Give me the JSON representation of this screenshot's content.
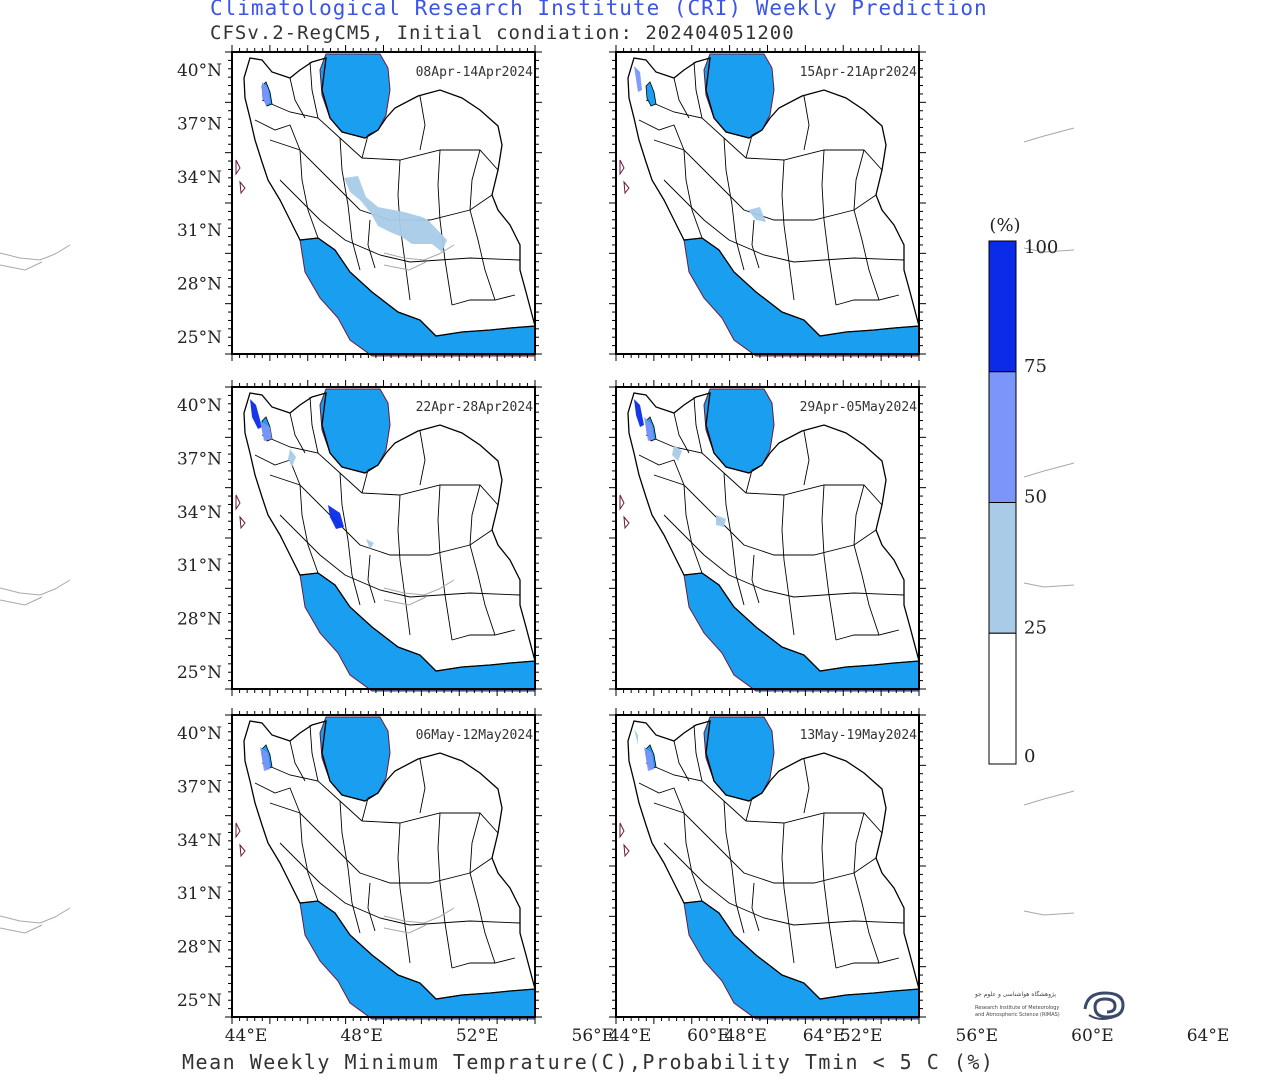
{
  "header": {
    "title": "Climatological Research Institute (CRI) Weekly Prediction",
    "subtitle": "CFSv.2-RegCM5, Initial condiation: 202404051200"
  },
  "footer": {
    "caption": "Mean Weekly Minimum Temprature(C),Probability Tmin < 5 C (%)"
  },
  "axes": {
    "lat_ticks": [
      "40°N",
      "37°N",
      "34°N",
      "31°N",
      "28°N",
      "25°N"
    ],
    "lon_ticks": [
      "44°E",
      "48°E",
      "52°E",
      "56°E",
      "60°E",
      "64°E"
    ],
    "lat_values": [
      40,
      37,
      34,
      31,
      28,
      25
    ],
    "lon_values": [
      44,
      48,
      52,
      56,
      60,
      64
    ]
  },
  "panels": [
    {
      "label": "08Apr-14Apr2024"
    },
    {
      "label": "15Apr-21Apr2024"
    },
    {
      "label": "22Apr-28Apr2024"
    },
    {
      "label": "29Apr-05May2024"
    },
    {
      "label": "06May-12May2024"
    },
    {
      "label": "13May-19May2024"
    }
  ],
  "legend": {
    "unit": "(%)",
    "ticks": [
      "100",
      "75",
      "50",
      "25",
      "0"
    ],
    "bins": [
      {
        "range": "75-100",
        "color": "#0a2be8"
      },
      {
        "range": "50-75",
        "color": "#7b95fb"
      },
      {
        "range": "25-50",
        "color": "#a9cbe8"
      },
      {
        "range": "0-25",
        "color": "#ffffff"
      }
    ]
  },
  "colors": {
    "water": "#199ef0",
    "coast": "#6b1a3a",
    "border": "#000000",
    "neighbor_border": "#a8a8a8"
  },
  "logo": {
    "line1": "پژوهشگاه هواشناسی و علوم جو",
    "line2": "Research Institute of Meteorology",
    "line3": "and Atmospheric Science (RIMAS)"
  }
}
